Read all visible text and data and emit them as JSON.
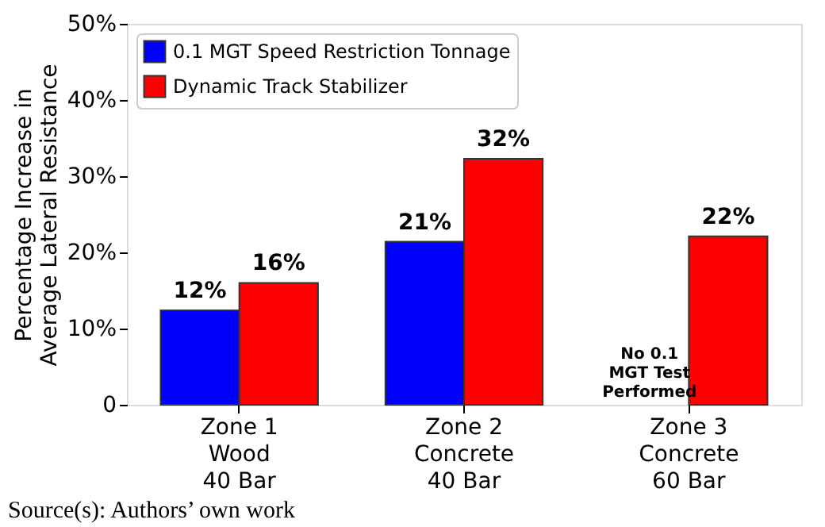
{
  "chart_data": {
    "type": "bar",
    "ylabel": "Percentage Increase in\nAverage Lateral Resistance",
    "categories": [
      "Zone 1\nWood\n40 Bar",
      "Zone 2\nConcrete\n40 Bar",
      "Zone 3\nConcrete\n60 Bar"
    ],
    "series": [
      {
        "name": "0.1 MGT Speed Restriction Tonnage",
        "color": "#0000ff",
        "values": [
          12.4,
          21.4,
          null
        ],
        "value_labels": [
          "12%",
          "21%",
          null
        ]
      },
      {
        "name": "Dynamic Track Stabilizer",
        "color": "#ff0000",
        "values": [
          16.0,
          32.3,
          22.1
        ],
        "value_labels": [
          "16%",
          "32%",
          "22%"
        ]
      }
    ],
    "ylim": [
      0,
      50
    ],
    "yticks": [
      0,
      {
        "value": 10,
        "label": "10%"
      },
      {
        "value": 20,
        "label": "20%"
      },
      {
        "value": 30,
        "label": "30%"
      },
      {
        "value": 40,
        "label": "40%"
      },
      {
        "value": 50,
        "label": "50%"
      }
    ],
    "grid": false,
    "legend": "top left",
    "annotations": [
      {
        "text": "No 0.1\nMGT Test\nPerformed",
        "x": "Zone 3\nConcrete\n60 Bar",
        "y": 0
      },
      "Source(s): Authors’ own work"
    ]
  }
}
